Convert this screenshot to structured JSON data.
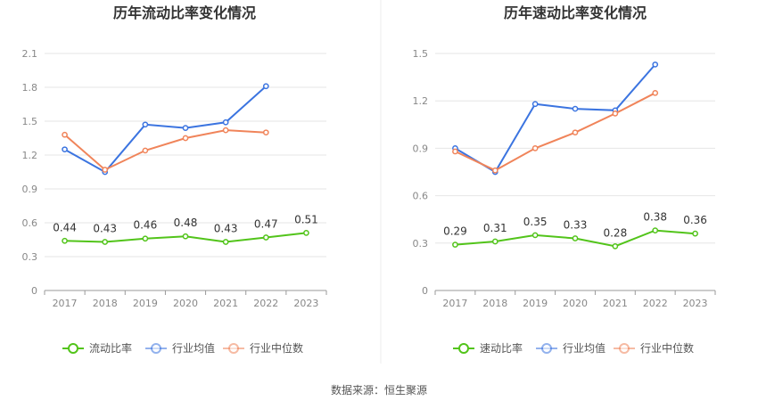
{
  "source_text": "数据来源：恒生聚源",
  "colors": {
    "company": "#52c41a",
    "avg": "#3b74e0",
    "median": "#f0845a",
    "grid": "#e6e6e6",
    "axis": "#999999"
  },
  "chart_data": [
    {
      "type": "line",
      "title": "历年流动比率变化情况",
      "categories": [
        "2017",
        "2018",
        "2019",
        "2020",
        "2021",
        "2022",
        "2023"
      ],
      "yticks": [
        "0",
        "0.3",
        "0.6",
        "0.9",
        "1.2",
        "1.5",
        "1.8",
        "2.1"
      ],
      "ylim": [
        0,
        2.1
      ],
      "grid": true,
      "legend_placement": "bottom",
      "series": [
        {
          "name": "流动比率",
          "values": [
            0.44,
            0.43,
            0.46,
            0.48,
            0.43,
            0.47,
            0.51
          ],
          "labels": [
            "0.44",
            "0.43",
            "0.46",
            "0.48",
            "0.43",
            "0.47",
            "0.51"
          ]
        },
        {
          "name": "行业均值",
          "values": [
            1.25,
            1.05,
            1.47,
            1.44,
            1.49,
            1.81,
            null
          ]
        },
        {
          "name": "行业中位数",
          "values": [
            1.38,
            1.07,
            1.24,
            1.35,
            1.42,
            1.4,
            null
          ]
        }
      ]
    },
    {
      "type": "line",
      "title": "历年速动比率变化情况",
      "categories": [
        "2017",
        "2018",
        "2019",
        "2020",
        "2021",
        "2022",
        "2023"
      ],
      "yticks": [
        "0",
        "0.3",
        "0.6",
        "0.9",
        "1.2",
        "1.5"
      ],
      "ylim": [
        0,
        1.5
      ],
      "grid": true,
      "legend_placement": "bottom",
      "series": [
        {
          "name": "速动比率",
          "values": [
            0.29,
            0.31,
            0.35,
            0.33,
            0.28,
            0.38,
            0.36
          ],
          "labels": [
            "0.29",
            "0.31",
            "0.35",
            "0.33",
            "0.28",
            "0.38",
            "0.36"
          ]
        },
        {
          "name": "行业均值",
          "values": [
            0.9,
            0.75,
            1.18,
            1.15,
            1.14,
            1.43,
            null
          ]
        },
        {
          "name": "行业中位数",
          "values": [
            0.88,
            0.76,
            0.9,
            1.0,
            1.12,
            1.25,
            null
          ]
        }
      ]
    }
  ]
}
